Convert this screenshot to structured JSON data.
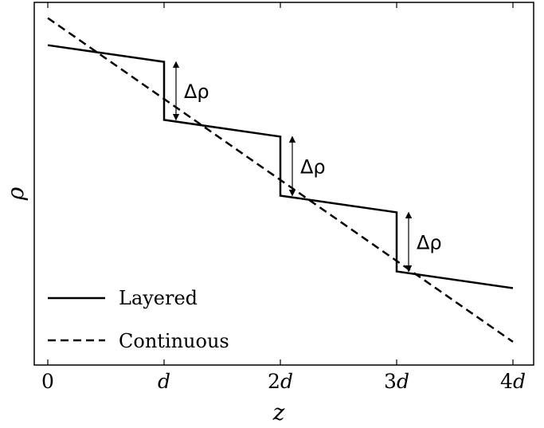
{
  "chart_data": {
    "type": "line",
    "xlabel": "z",
    "ylabel": "ρ",
    "xlim": [
      0,
      4
    ],
    "ylim": [
      0,
      1
    ],
    "grid": false,
    "x_ticks": [
      {
        "value": 0,
        "coef": "0",
        "unit": ""
      },
      {
        "value": 1,
        "coef": "",
        "unit": "d"
      },
      {
        "value": 2,
        "coef": "2",
        "unit": "d"
      },
      {
        "value": 3,
        "coef": "3",
        "unit": "d"
      },
      {
        "value": 4,
        "coef": "4",
        "unit": "d"
      }
    ],
    "series": [
      {
        "name": "Layered",
        "style": "solid",
        "x": [
          0,
          1,
          1,
          2,
          2,
          3,
          3,
          4
        ],
        "y": [
          0.882,
          0.836,
          0.676,
          0.63,
          0.467,
          0.421,
          0.258,
          0.212
        ]
      },
      {
        "name": "Continuous",
        "style": "dashed",
        "x": [
          0,
          4
        ],
        "y": [
          0.957,
          0.064
        ]
      }
    ],
    "annotations": [
      {
        "text": "Δρ",
        "x": 1.0,
        "y_top": 0.836,
        "y_bottom": 0.676
      },
      {
        "text": "Δρ",
        "x": 2.0,
        "y_top": 0.63,
        "y_bottom": 0.467
      },
      {
        "text": "Δρ",
        "x": 3.0,
        "y_top": 0.421,
        "y_bottom": 0.258
      }
    ],
    "legend_position": "bottom-left"
  }
}
